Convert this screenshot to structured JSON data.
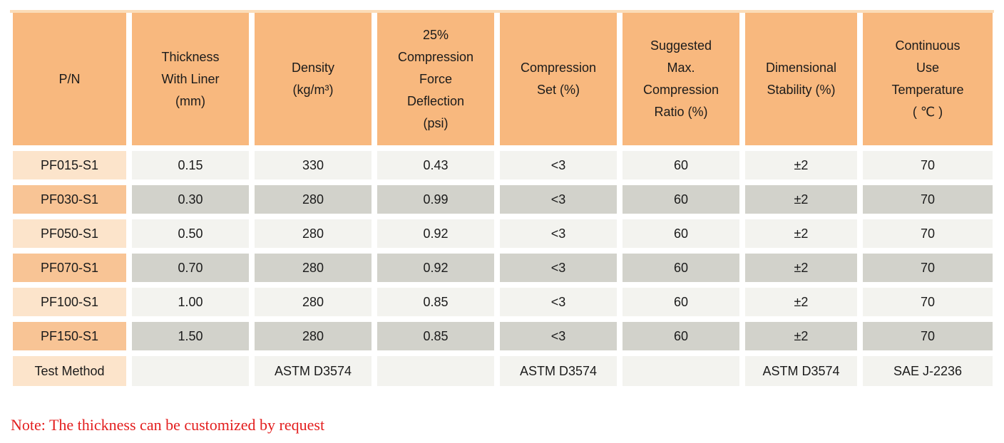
{
  "table": {
    "headers": [
      "P/N",
      "Thickness\nWith Liner\n(mm)",
      "Density\n(kg/m³)",
      "25%\nCompression\nForce\nDeflection\n(psi)",
      "Compression\nSet (%)",
      "Suggested\nMax.\nCompression\nRatio (%)",
      "Dimensional\nStability (%)",
      "Continuous\nUse\nTemperature\n( ℃ )"
    ],
    "rows": [
      {
        "pn": "PF015-S1",
        "values": [
          "0.15",
          "330",
          "0.43",
          "<3",
          "60",
          "±2",
          "70"
        ]
      },
      {
        "pn": "PF030-S1",
        "values": [
          "0.30",
          "280",
          "0.99",
          "<3",
          "60",
          "±2",
          "70"
        ]
      },
      {
        "pn": "PF050-S1",
        "values": [
          "0.50",
          "280",
          "0.92",
          "<3",
          "60",
          "±2",
          "70"
        ]
      },
      {
        "pn": "PF070-S1",
        "values": [
          "0.70",
          "280",
          "0.92",
          "<3",
          "60",
          "±2",
          "70"
        ]
      },
      {
        "pn": "PF100-S1",
        "values": [
          "1.00",
          "280",
          "0.85",
          "<3",
          "60",
          "±2",
          "70"
        ]
      },
      {
        "pn": "PF150-S1",
        "values": [
          "1.50",
          "280",
          "0.85",
          "<3",
          "60",
          "±2",
          "70"
        ]
      }
    ],
    "test_method": {
      "label": "Test Method",
      "values": [
        "",
        "ASTM D3574",
        "",
        "ASTM D3574",
        "",
        "ASTM D3574",
        "SAE J-2236"
      ]
    }
  },
  "note": "Note: The thickness can be customized by request",
  "colors": {
    "header_orange": "#F8B87E",
    "top_stripe": "#FBDCB8",
    "row_peach_light": "#FCE4CB",
    "row_peach_dark": "#F8C495",
    "cell_gray_light": "#F3F3EF",
    "cell_gray_dark": "#D2D2CB",
    "note_red": "#E31E1E",
    "text": "#1b1b1b"
  }
}
